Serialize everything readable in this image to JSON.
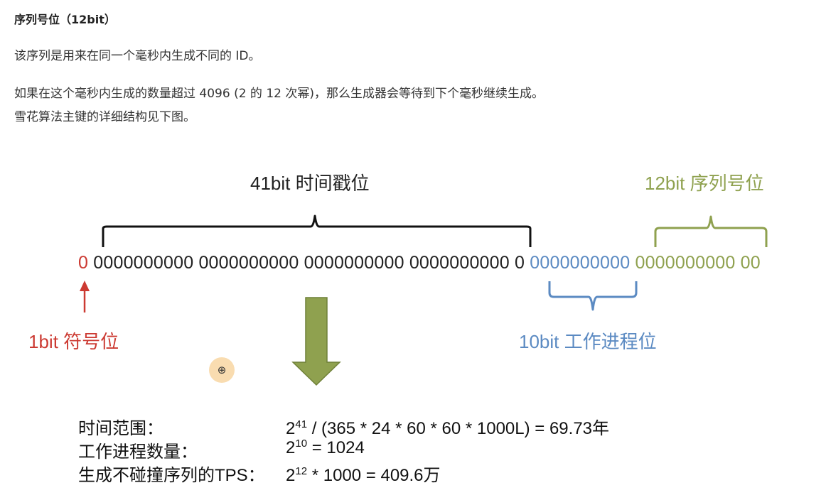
{
  "heading": "序列号位（12bit）",
  "paragraphs": [
    "该序列是用来在同一个毫秒内生成不同的 ID。",
    "如果在这个毫秒内生成的数量超过 4096 (2 的 12 次幂)，那么生成器会等待到下个毫秒继续生成。",
    "雪花算法主键的详细结构见下图。"
  ],
  "diagram": {
    "labels": {
      "timestamp": "41bit 时间戳位",
      "sequence": "12bit 序列号位",
      "sign": "1bit 符号位",
      "worker": "10bit 工作进程位"
    },
    "bits": {
      "sign": "0",
      "timestamp": "0000000000 0000000000 0000000000 0000000000 0",
      "worker": "0000000000",
      "sequence": "0000000000 00"
    },
    "formulas": [
      {
        "label": "时间范围：",
        "base": "2",
        "exp": "41",
        "rest": " / (365 * 24 * 60 * 60 * 1000L) = 69.73年"
      },
      {
        "label": "工作进程数量：",
        "base": "2",
        "exp": "10",
        "rest": " = 1024"
      },
      {
        "label": "生成不碰撞序列的TPS：",
        "base": "2",
        "exp": "12",
        "rest": " * 1000  = 409.6万"
      }
    ],
    "colors": {
      "sign": "#cc3a32",
      "worker": "#5b8ac2",
      "sequence": "#8fa14f",
      "arrow": "#8fa14f"
    }
  }
}
